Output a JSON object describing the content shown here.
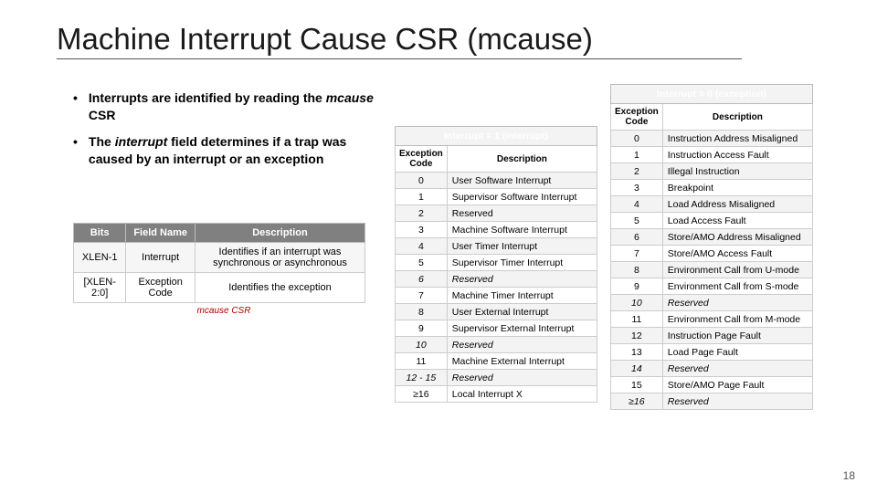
{
  "title": "Machine Interrupt Cause CSR (mcause)",
  "page_number": "18",
  "bullets": [
    {
      "pre": "Interrupts are identified by reading the ",
      "em": "mcause",
      "post": " CSR"
    },
    {
      "pre": "The ",
      "em": "interrupt",
      "post": " field determines if a trap was caused by an interrupt or an exception"
    }
  ],
  "fields_table": {
    "headers": [
      "Bits",
      "Field Name",
      "Description"
    ],
    "rows": [
      [
        "XLEN-1",
        "Interrupt",
        "Identifies if an interrupt was synchronous or asynchronous"
      ],
      [
        "[XLEN-2:0]",
        "Exception Code",
        "Identifies the exception"
      ]
    ],
    "caption": "mcause CSR"
  },
  "interrupt_table": {
    "banner": "Interrupt = 1 (interrupt)",
    "col1": "Exception Code",
    "col2": "Description",
    "rows": [
      {
        "code": "0",
        "desc": "User Software Interrupt",
        "italic": false
      },
      {
        "code": "1",
        "desc": "Supervisor Software Interrupt",
        "italic": false
      },
      {
        "code": "2",
        "desc": "Reserved",
        "italic": false
      },
      {
        "code": "3",
        "desc": "Machine Software Interrupt",
        "italic": false
      },
      {
        "code": "4",
        "desc": "User Timer Interrupt",
        "italic": false
      },
      {
        "code": "5",
        "desc": "Supervisor Timer Interrupt",
        "italic": false
      },
      {
        "code": "6",
        "desc": "Reserved",
        "italic": true
      },
      {
        "code": "7",
        "desc": "Machine Timer Interrupt",
        "italic": false
      },
      {
        "code": "8",
        "desc": "User External Interrupt",
        "italic": false
      },
      {
        "code": "9",
        "desc": "Supervisor External Interrupt",
        "italic": false
      },
      {
        "code": "10",
        "desc": "Reserved",
        "italic": true
      },
      {
        "code": "11",
        "desc": "Machine External Interrupt",
        "italic": false
      },
      {
        "code": "12 - 15",
        "desc": "Reserved",
        "italic": true
      },
      {
        "code": "≥16",
        "desc": "Local Interrupt  X",
        "italic": false
      }
    ]
  },
  "exception_table": {
    "banner": "Interrupt = 0 (exception)",
    "col1": "Exception Code",
    "col2": "Description",
    "rows": [
      {
        "code": "0",
        "desc": "Instruction Address Misaligned",
        "italic": false
      },
      {
        "code": "1",
        "desc": "Instruction Access Fault",
        "italic": false
      },
      {
        "code": "2",
        "desc": "Illegal Instruction",
        "italic": false
      },
      {
        "code": "3",
        "desc": "Breakpoint",
        "italic": false
      },
      {
        "code": "4",
        "desc": "Load Address Misaligned",
        "italic": false
      },
      {
        "code": "5",
        "desc": "Load Access Fault",
        "italic": false
      },
      {
        "code": "6",
        "desc": "Store/AMO Address Misaligned",
        "italic": false
      },
      {
        "code": "7",
        "desc": "Store/AMO Access Fault",
        "italic": false
      },
      {
        "code": "8",
        "desc": "Environment Call from U-mode",
        "italic": false
      },
      {
        "code": "9",
        "desc": "Environment Call from S-mode",
        "italic": false
      },
      {
        "code": "10",
        "desc": "Reserved",
        "italic": true
      },
      {
        "code": "11",
        "desc": "Environment Call from M-mode",
        "italic": false
      },
      {
        "code": "12",
        "desc": "Instruction Page Fault",
        "italic": false
      },
      {
        "code": "13",
        "desc": "Load Page Fault",
        "italic": false
      },
      {
        "code": "14",
        "desc": "Reserved",
        "italic": true
      },
      {
        "code": "15",
        "desc": "Store/AMO Page Fault",
        "italic": false
      },
      {
        "code": "≥16",
        "desc": "Reserved",
        "italic": true
      }
    ]
  }
}
